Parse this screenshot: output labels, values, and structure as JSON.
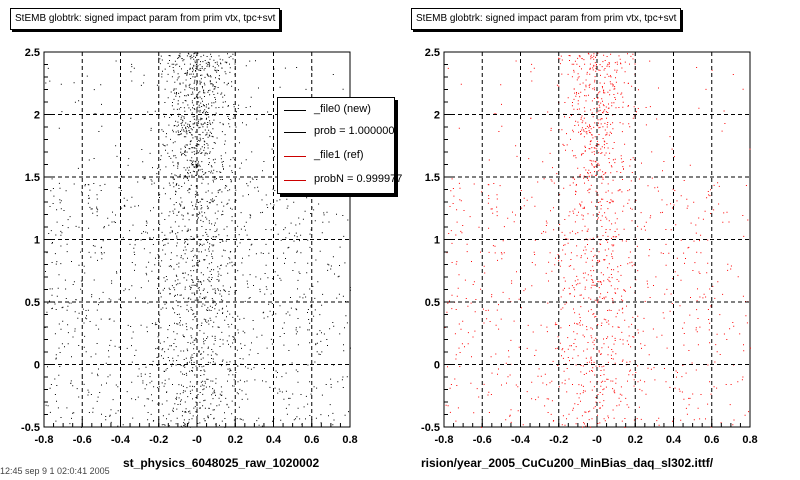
{
  "chart_data": [
    {
      "type": "scatter",
      "title": "StEMB globtrk: signed impact param from prim vtx, tpc+svt",
      "xlabel": "st_physics_6048025_raw_1020002",
      "ylabel": "",
      "xlim": [
        -0.8,
        0.8
      ],
      "ylim": [
        -0.5,
        2.5
      ],
      "x_ticks": [
        "-0.8",
        "-0.6",
        "-0.4",
        "-0.2",
        "-0",
        "0.2",
        "0.4",
        "0.6",
        "0.8"
      ],
      "y_ticks": [
        "-0.5",
        "0",
        "0.5",
        "1",
        "1.5",
        "2",
        "2.5"
      ],
      "grid": true,
      "color": "#000000",
      "legend_position": "top-right",
      "legend": [
        {
          "label": "_file0 (new)",
          "color": "#000000"
        },
        {
          "label": "prob = 1.000000",
          "color": "#000000"
        },
        {
          "label": "_file1 (ref)",
          "color": "#cc0000"
        },
        {
          "label": "probN = 0.999977",
          "color": "#cc0000"
        }
      ]
    },
    {
      "type": "scatter",
      "title": "StEMB globtrk: signed impact param from prim vtx, tpc+svt",
      "xlabel": "rision/year_2005_CuCu200_MinBias_daq_sl302.ittf/",
      "ylabel": "",
      "xlim": [
        -0.8,
        0.8
      ],
      "ylim": [
        -0.5,
        2.5
      ],
      "x_ticks": [
        "-0.8",
        "-0.6",
        "-0.4",
        "-0.2",
        "-0",
        "0.2",
        "0.4",
        "0.6",
        "0.8"
      ],
      "y_ticks": [
        "-0.5",
        "0",
        "0.5",
        "1",
        "1.5",
        "2",
        "2.5"
      ],
      "grid": true,
      "color": "#ff0000"
    }
  ],
  "footnote": "12:45 sep 9 1 02:0:41 2005"
}
